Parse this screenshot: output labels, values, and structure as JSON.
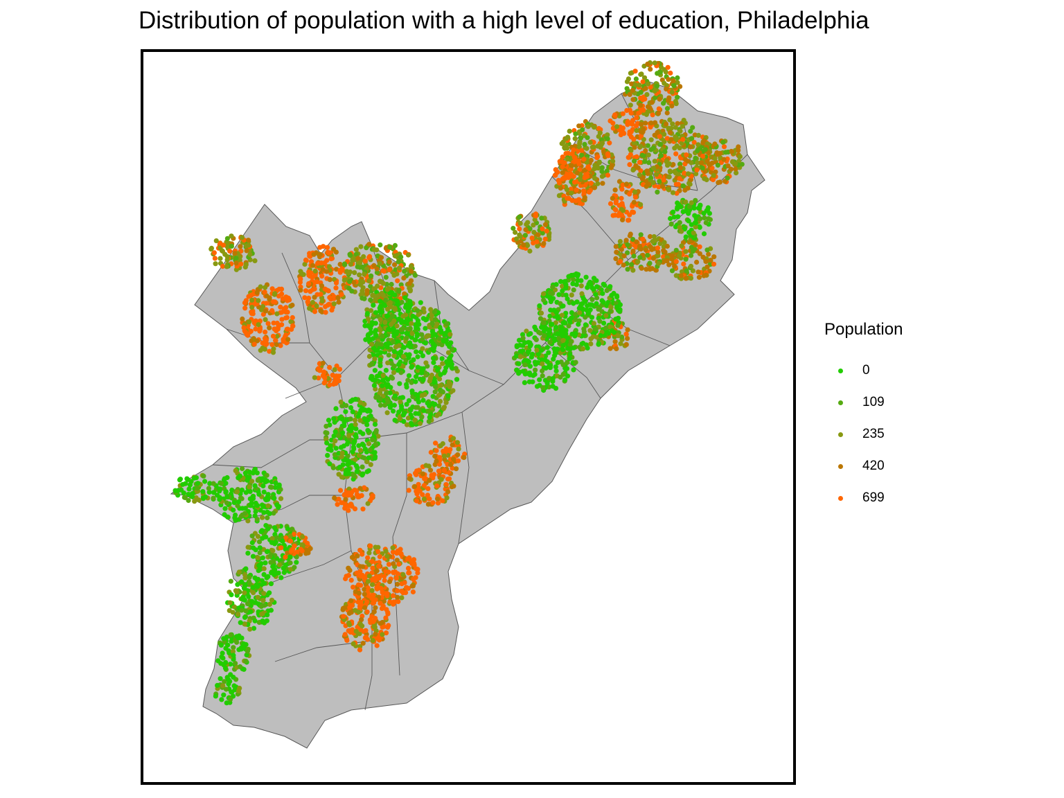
{
  "title": "Distribution of population with a high level of education, Philadelphia",
  "map": {
    "region": "Philadelphia",
    "boundary_fill": "#bebebe",
    "boundary_stroke": "#555555",
    "clusters": [
      {
        "zone": "far-northeast",
        "level": 235
      },
      {
        "zone": "far-northeast-west",
        "level": 699
      },
      {
        "zone": "northeast-east",
        "level": 420
      },
      {
        "zone": "lower-northeast",
        "level": 0
      },
      {
        "zone": "roxborough-manayunk",
        "level": 699
      },
      {
        "zone": "germantown-east",
        "level": 235
      },
      {
        "zone": "north-philadelphia",
        "level": 0
      },
      {
        "zone": "center-city",
        "level": 699
      },
      {
        "zone": "west-philadelphia",
        "level": 0
      },
      {
        "zone": "south-philadelphia",
        "level": 699
      },
      {
        "zone": "southwest",
        "level": 0
      }
    ]
  },
  "legend": {
    "title": "Population",
    "items": [
      {
        "label": "0",
        "color": "#22cc00"
      },
      {
        "label": "109",
        "color": "#55aa11"
      },
      {
        "label": "235",
        "color": "#889911"
      },
      {
        "label": "420",
        "color": "#bb7700"
      },
      {
        "label": "699",
        "color": "#ff6600"
      }
    ]
  }
}
